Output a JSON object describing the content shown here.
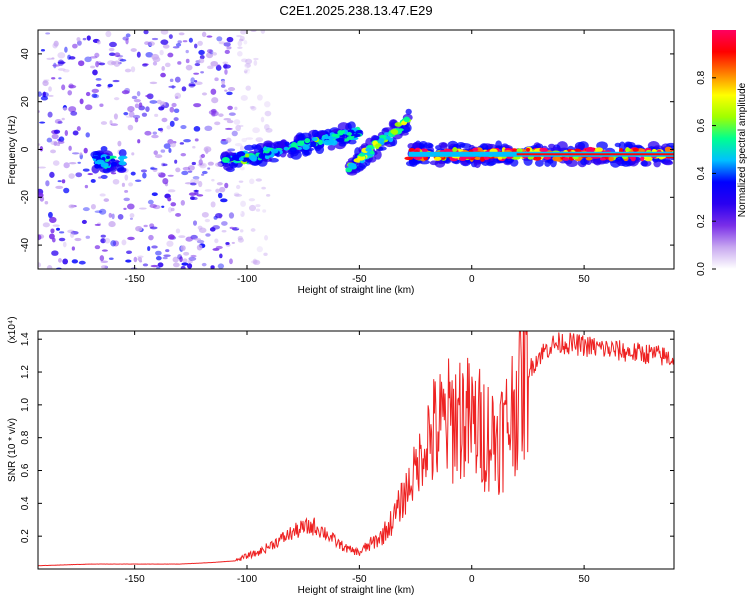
{
  "title": "C2E1.2025.238.13.47.E29",
  "colors": {
    "snr_line": "#ee2222",
    "colormap": [
      "#ffffff",
      "#c8a8f0",
      "#7a2ee8",
      "#2a00f0",
      "#0000ff",
      "#00c0ff",
      "#00ff90",
      "#a0ff00",
      "#ffff00",
      "#ff8000",
      "#ff0000",
      "#ff0060"
    ]
  },
  "chart_data": [
    {
      "type": "heatmap",
      "name": "spectrogram",
      "xlabel": "Height of straight line (km)",
      "ylabel": "Frequency (Hz)",
      "xlim": [
        -193,
        90
      ],
      "ylim": [
        -50,
        50
      ],
      "xticks": [
        -150,
        -100,
        -50,
        0,
        50
      ],
      "yticks": [
        -40,
        -20,
        0,
        20,
        40
      ],
      "colorbar": {
        "label": "Normalized spectral amplitude",
        "range": [
          0,
          1
        ],
        "ticks": [
          0.0,
          0.2,
          0.4,
          0.6,
          0.8
        ]
      },
      "features": [
        {
          "name": "noise-region",
          "x_range": [
            -193,
            -105
          ],
          "freq_range": [
            -50,
            50
          ],
          "level": 0.15
        },
        {
          "name": "faint-tail",
          "x_range": [
            -105,
            -90
          ],
          "freq_range": [
            -50,
            50
          ],
          "level": 0.05
        },
        {
          "name": "band-1",
          "x_range": [
            -168,
            -155
          ],
          "freq_center": -5,
          "level": 0.45
        },
        {
          "name": "band-2",
          "x_range": [
            -110,
            -50
          ],
          "freq_start": -5,
          "freq_end": 7,
          "level": 0.5
        },
        {
          "name": "band-3",
          "x_range": [
            -55,
            -28
          ],
          "freq_start": -8,
          "freq_end": 12,
          "level": 0.6
        },
        {
          "name": "band-4",
          "x_range": [
            -28,
            90
          ],
          "freq_center": -2,
          "level": 0.9
        }
      ]
    },
    {
      "type": "line",
      "name": "snr",
      "xlabel": "Height of straight line (km)",
      "ylabel": "SNR (10 * v/v)",
      "y_multiplier": "(x10⁴)",
      "xlim": [
        -193,
        90
      ],
      "ylim": [
        0,
        1.45
      ],
      "xticks": [
        -150,
        -100,
        -50,
        0,
        50
      ],
      "yticks": [
        0.2,
        0.4,
        0.6,
        0.8,
        1.0,
        1.2,
        1.4
      ],
      "series": [
        {
          "name": "SNR",
          "x": [
            -193,
            -170,
            -150,
            -130,
            -115,
            -105,
            -100,
            -95,
            -90,
            -85,
            -80,
            -75,
            -70,
            -65,
            -60,
            -55,
            -50,
            -45,
            -40,
            -35,
            -30,
            -25,
            -20,
            -15,
            -10,
            -5,
            0,
            5,
            10,
            15,
            20,
            25,
            30,
            35,
            40,
            50,
            60,
            70,
            80,
            90
          ],
          "y": [
            0.02,
            0.03,
            0.03,
            0.03,
            0.04,
            0.05,
            0.08,
            0.1,
            0.14,
            0.18,
            0.22,
            0.25,
            0.26,
            0.22,
            0.16,
            0.12,
            0.1,
            0.15,
            0.2,
            0.3,
            0.45,
            0.6,
            0.78,
            0.85,
            0.9,
            0.95,
            0.88,
            0.85,
            0.8,
            0.85,
            1.05,
            1.2,
            1.3,
            1.36,
            1.38,
            1.36,
            1.34,
            1.32,
            1.31,
            1.28
          ]
        }
      ]
    }
  ]
}
